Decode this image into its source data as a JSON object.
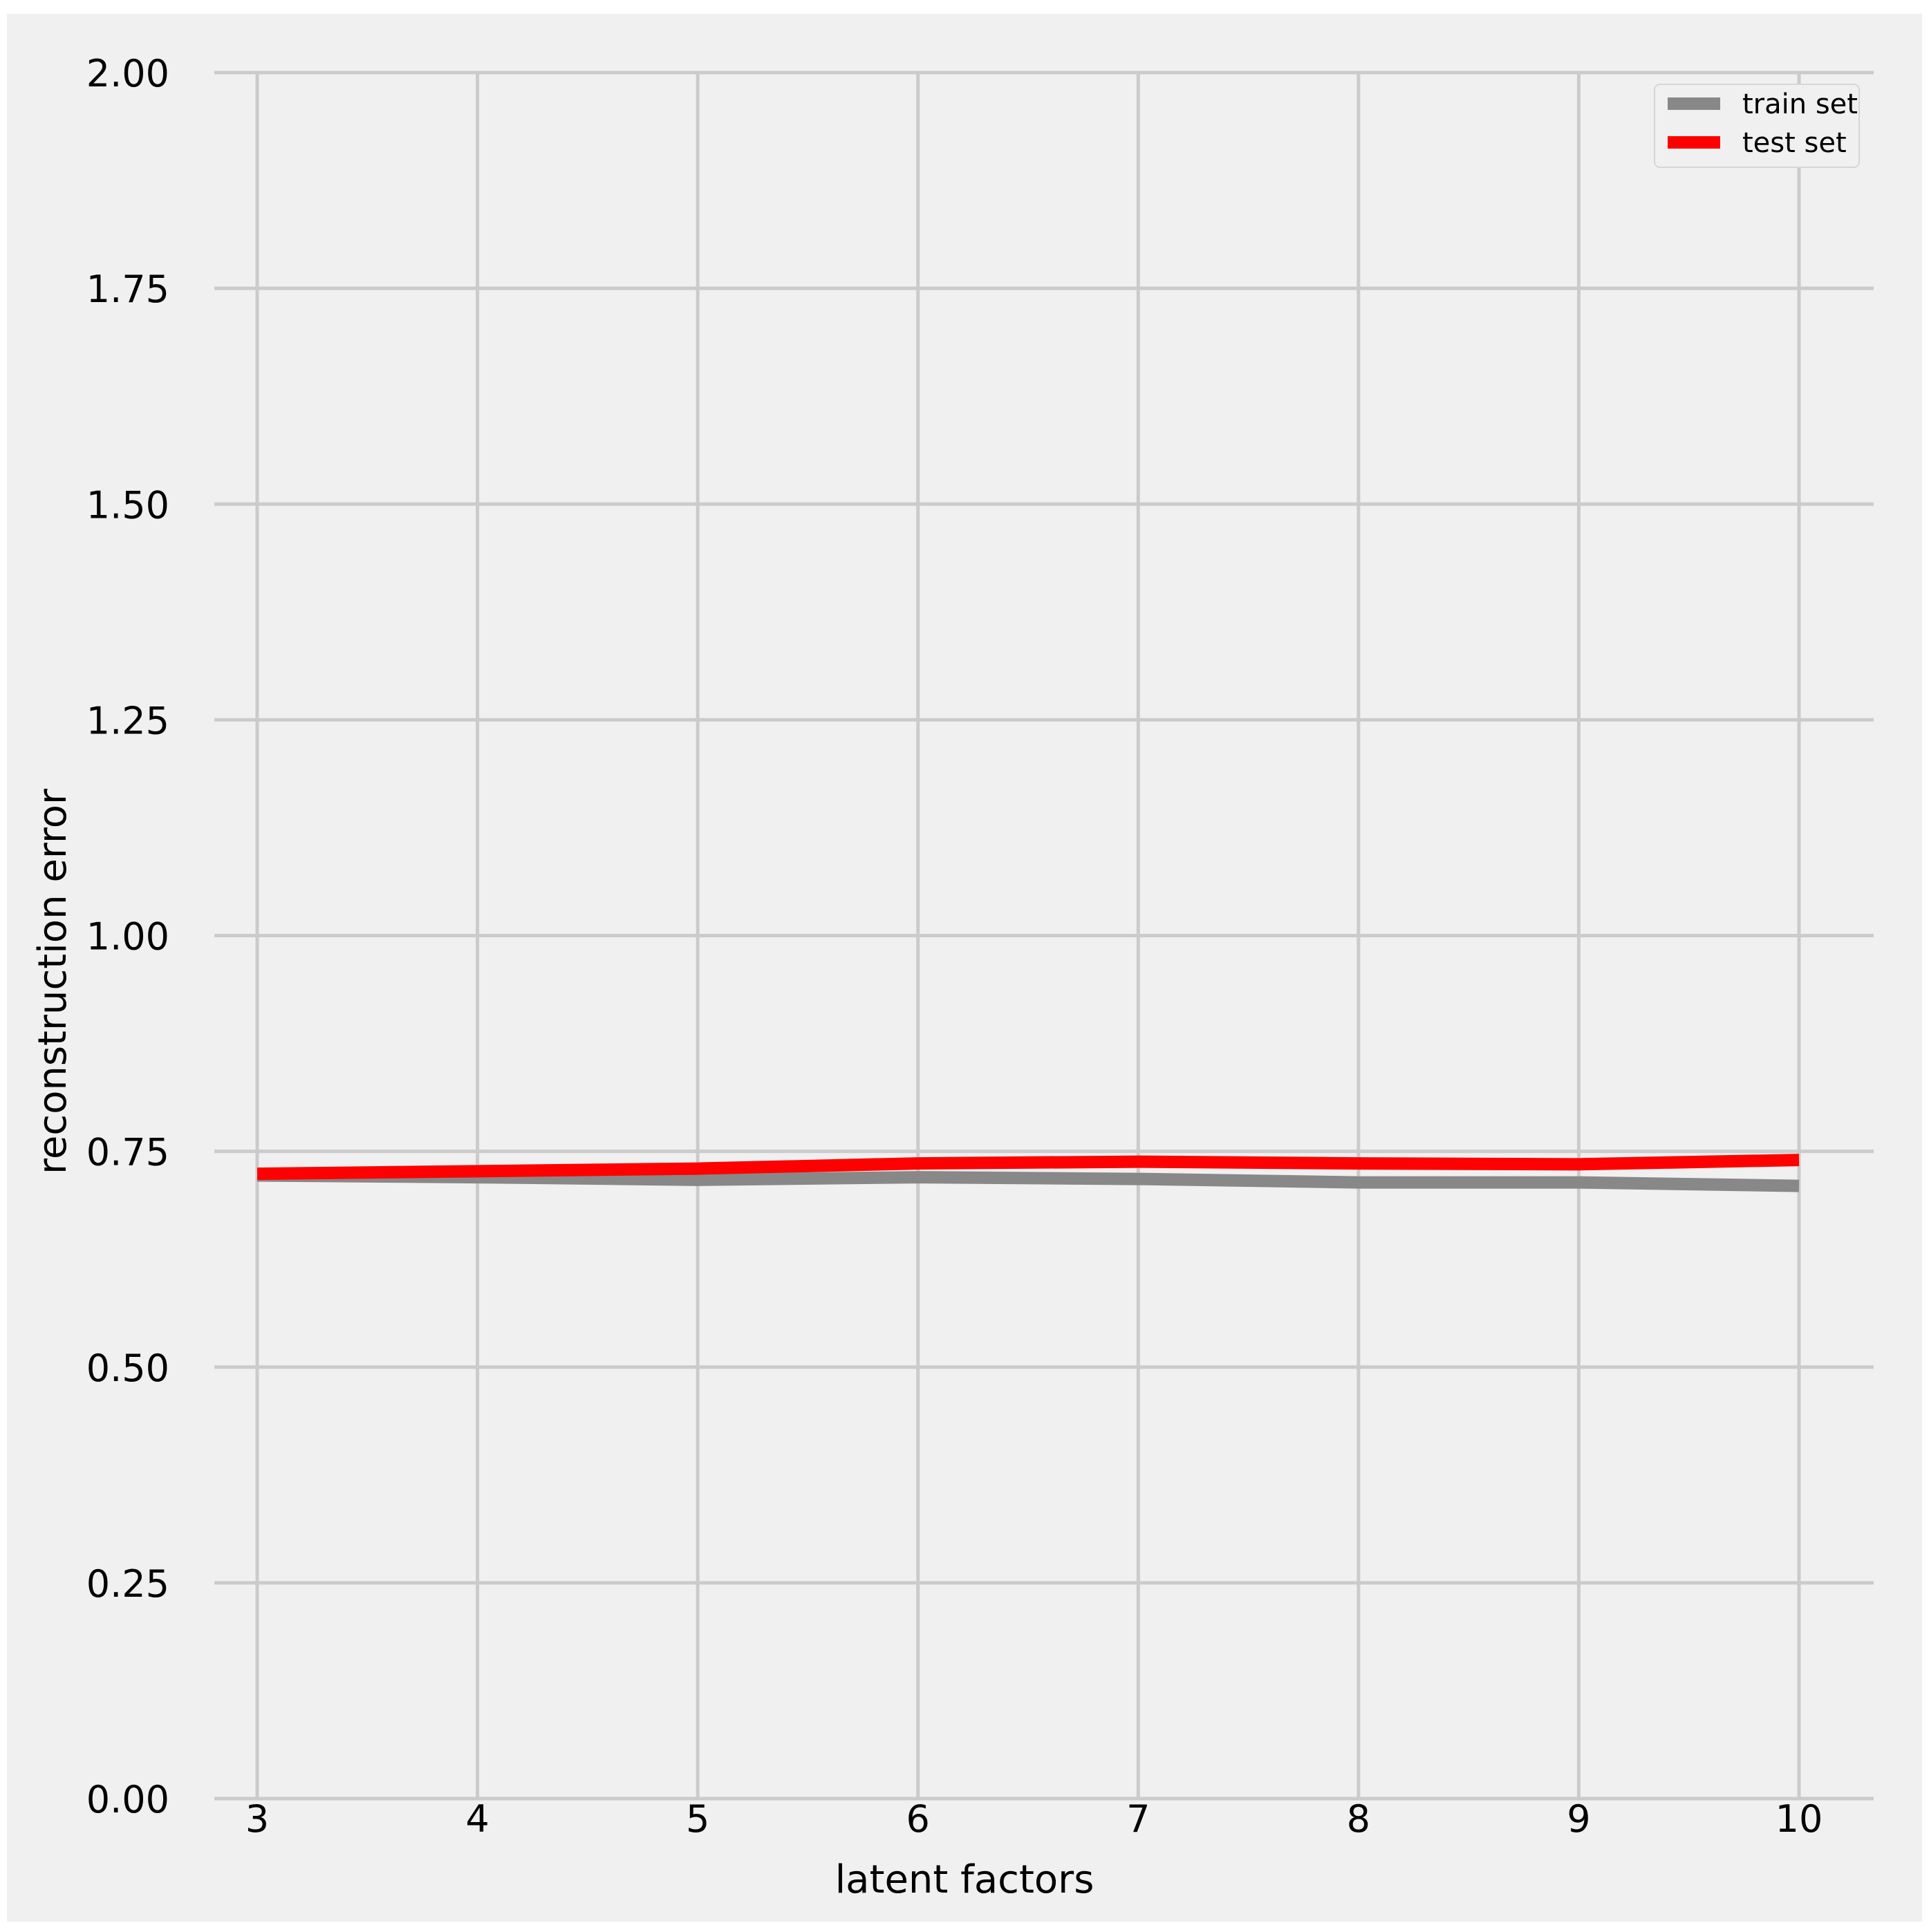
{
  "chart_data": {
    "type": "line",
    "title": "",
    "xlabel": "latent factors",
    "ylabel": "reconstruction error",
    "x": [
      3,
      4,
      5,
      6,
      7,
      8,
      9,
      10
    ],
    "x_ticks": [
      "3",
      "4",
      "5",
      "6",
      "7",
      "8",
      "9",
      "10"
    ],
    "y_ticks": [
      "0.00",
      "0.25",
      "0.50",
      "0.75",
      "1.00",
      "1.25",
      "1.50",
      "1.75",
      "2.00"
    ],
    "y_tick_values": [
      0,
      0.25,
      0.5,
      0.75,
      1.0,
      1.25,
      1.5,
      1.75,
      2.0
    ],
    "xlim": [
      3,
      10
    ],
    "ylim": [
      0,
      2.0
    ],
    "grid": true,
    "legend_position": "top-right",
    "series": [
      {
        "name": "train set",
        "color": "#888888",
        "values": [
          0.722,
          0.72,
          0.717,
          0.72,
          0.718,
          0.714,
          0.714,
          0.71
        ]
      },
      {
        "name": "test set",
        "color": "#ff0000",
        "values": [
          0.724,
          0.727,
          0.73,
          0.736,
          0.738,
          0.736,
          0.735,
          0.74
        ]
      }
    ],
    "colors": {
      "background": "#f0f0f0",
      "grid": "#cbcbcb"
    }
  }
}
